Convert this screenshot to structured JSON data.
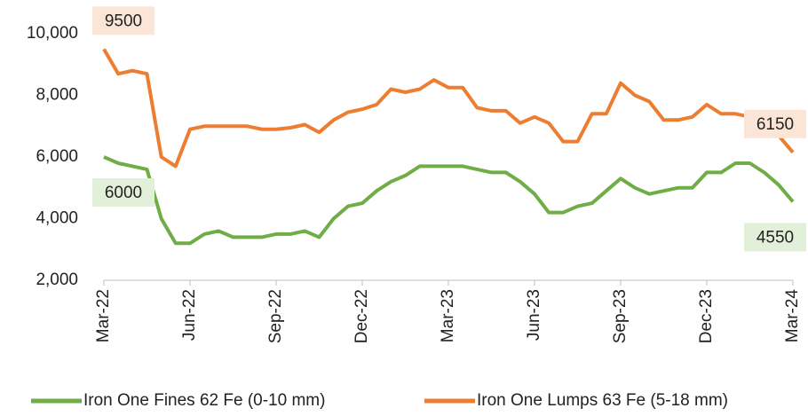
{
  "chart_data": {
    "type": "line",
    "categories": [
      "Mar-22",
      null,
      null,
      null,
      null,
      null,
      "Jun-22",
      null,
      null,
      null,
      null,
      null,
      "Sep-22",
      null,
      null,
      null,
      null,
      null,
      "Dec-22",
      null,
      null,
      null,
      null,
      null,
      "Mar-23",
      null,
      null,
      null,
      null,
      null,
      "Jun-23",
      null,
      null,
      null,
      null,
      null,
      "Sep-23",
      null,
      null,
      null,
      null,
      null,
      "Dec-23",
      null,
      null,
      null,
      null,
      null,
      "Mar-24"
    ],
    "series": [
      {
        "name": "Iron One Fines 62 Fe (0-10 mm)",
        "color": "#70ad47",
        "values": [
          6000,
          5800,
          5700,
          5600,
          4000,
          3200,
          3200,
          3500,
          3600,
          3400,
          3400,
          3400,
          3500,
          3500,
          3600,
          3400,
          4000,
          4400,
          4500,
          4900,
          5200,
          5400,
          5700,
          5700,
          5700,
          5700,
          5600,
          5500,
          5500,
          5200,
          4800,
          4200,
          4200,
          4400,
          4500,
          4900,
          5300,
          5000,
          4800,
          4900,
          5000,
          5000,
          5500,
          5500,
          5800,
          5800,
          5500,
          5100,
          4550
        ],
        "value_labels": [
          "6000",
          null,
          null,
          null,
          null,
          null,
          null,
          null,
          null,
          null,
          null,
          null,
          null,
          null,
          null,
          null,
          null,
          null,
          null,
          null,
          null,
          null,
          null,
          null,
          null,
          null,
          null,
          null,
          null,
          null,
          null,
          null,
          null,
          null,
          null,
          null,
          null,
          null,
          null,
          null,
          null,
          null,
          null,
          null,
          null,
          null,
          null,
          null,
          "4550"
        ]
      },
      {
        "name": "Iron One Lumps 63 Fe (5-18 mm)",
        "color": "#ed7d31",
        "values": [
          9500,
          8700,
          8800,
          8700,
          6000,
          5700,
          6900,
          7000,
          7000,
          7000,
          7000,
          6900,
          6900,
          6950,
          7050,
          6800,
          7200,
          7450,
          7550,
          7700,
          8200,
          8100,
          8200,
          8500,
          8250,
          8250,
          7600,
          7500,
          7500,
          7100,
          7300,
          7100,
          6500,
          6500,
          7400,
          7400,
          8400,
          8000,
          7800,
          7200,
          7200,
          7300,
          7700,
          7400,
          7400,
          7300,
          6900,
          6700,
          6150
        ],
        "value_labels": [
          "9500",
          null,
          null,
          null,
          null,
          null,
          null,
          null,
          null,
          null,
          null,
          null,
          null,
          null,
          null,
          null,
          null,
          null,
          null,
          null,
          null,
          null,
          null,
          null,
          null,
          null,
          null,
          null,
          null,
          null,
          null,
          null,
          null,
          null,
          null,
          null,
          null,
          null,
          null,
          null,
          null,
          null,
          null,
          null,
          null,
          null,
          null,
          null,
          "6150"
        ]
      }
    ],
    "ylim": [
      2000,
      10000
    ],
    "yticks": [
      {
        "value": 2000,
        "label": "2,000"
      },
      {
        "value": 4000,
        "label": "4,000"
      },
      {
        "value": 6000,
        "label": "6,000"
      },
      {
        "value": 8000,
        "label": "8,000"
      },
      {
        "value": 10000,
        "label": "10,000"
      }
    ],
    "grid": false,
    "legend": "bottom"
  }
}
